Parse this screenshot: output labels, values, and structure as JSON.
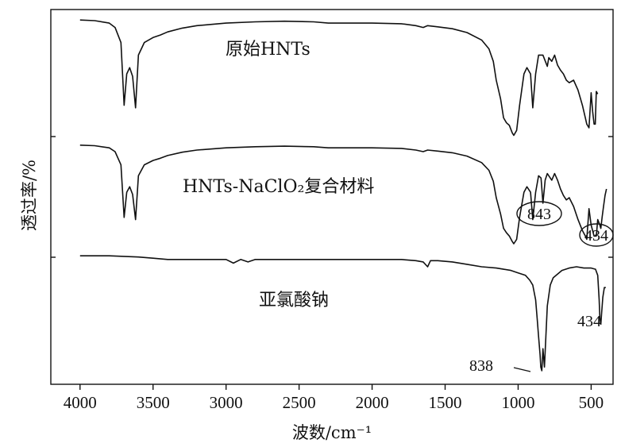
{
  "chart_data": {
    "type": "line",
    "xlabel": "波数/cm⁻¹",
    "ylabel": "透过率/%",
    "xlim": [
      4200,
      350
    ],
    "x_reversed": true,
    "x_ticks": [
      4000,
      3500,
      3000,
      2500,
      2000,
      1500,
      1000,
      500
    ],
    "y_ticks": [],
    "grid": false,
    "legend": "none",
    "series": [
      {
        "name": "原始HNTs",
        "x": [
          4000,
          3900,
          3800,
          3760,
          3720,
          3698,
          3680,
          3660,
          3640,
          3620,
          3600,
          3560,
          3500,
          3450,
          3400,
          3300,
          3200,
          3000,
          2800,
          2600,
          2400,
          2300,
          2000,
          1800,
          1700,
          1650,
          1620,
          1550,
          1450,
          1350,
          1250,
          1200,
          1170,
          1150,
          1120,
          1100,
          1080,
          1060,
          1040,
          1030,
          1010,
          990,
          960,
          940,
          915,
          900,
          880,
          860,
          830,
          800,
          790,
          770,
          750,
          730,
          710,
          690,
          670,
          650,
          620,
          590,
          560,
          540,
          530,
          515,
          500,
          490,
          480,
          472,
          465,
          455
        ],
        "values": [
          98,
          97.5,
          95.5,
          92,
          80,
          30,
          55,
          60,
          53,
          28,
          70,
          80,
          84,
          86,
          88.5,
          91.5,
          93.5,
          95.5,
          96.5,
          97,
          96.5,
          95.5,
          95.5,
          95,
          93.5,
          92,
          93.5,
          92.5,
          91,
          88,
          82,
          75,
          65,
          50,
          35,
          20,
          16,
          14,
          8,
          6,
          10,
          30,
          55,
          60,
          55,
          28,
          55,
          70,
          70,
          61,
          68,
          65,
          70,
          62,
          58,
          55,
          50,
          48,
          50,
          42,
          30,
          20,
          15,
          12,
          40,
          25,
          15,
          15,
          41,
          39
        ]
      },
      {
        "name": "HNTs-NaClO₂复合材料",
        "x": [
          4000,
          3900,
          3800,
          3760,
          3720,
          3698,
          3680,
          3660,
          3640,
          3620,
          3600,
          3560,
          3500,
          3450,
          3400,
          3300,
          3200,
          3000,
          2800,
          2600,
          2400,
          2300,
          2000,
          1800,
          1700,
          1650,
          1620,
          1550,
          1450,
          1350,
          1250,
          1200,
          1170,
          1150,
          1120,
          1100,
          1080,
          1060,
          1040,
          1030,
          1010,
          990,
          960,
          940,
          915,
          900,
          880,
          860,
          843,
          830,
          815,
          800,
          790,
          770,
          750,
          730,
          710,
          690,
          670,
          650,
          620,
          590,
          560,
          540,
          530,
          515,
          500,
          480,
          465,
          455,
          440,
          434,
          425,
          415,
          405,
          395
        ],
        "values": [
          98,
          97.5,
          95.5,
          92,
          80,
          32,
          55,
          60,
          53,
          30,
          70,
          80,
          84,
          86,
          88.5,
          91.5,
          93.5,
          95.5,
          96.5,
          97,
          96.5,
          95.5,
          95.5,
          95,
          93.5,
          92,
          93.5,
          92.5,
          91,
          88,
          82,
          75,
          65,
          50,
          35,
          22,
          18,
          15,
          10,
          8,
          12,
          32,
          55,
          60,
          55,
          30,
          55,
          70,
          68,
          45,
          66,
          72,
          70,
          66,
          72,
          66,
          58,
          52,
          48,
          50,
          42,
          30,
          20,
          15,
          12,
          40,
          25,
          15,
          15,
          30,
          25,
          22,
          32,
          42,
          52,
          58
        ]
      },
      {
        "name": "亚氯酸钠",
        "x": [
          4000,
          3800,
          3700,
          3600,
          3500,
          3400,
          3200,
          3000,
          2950,
          2900,
          2850,
          2800,
          2600,
          2400,
          2200,
          2000,
          1800,
          1700,
          1650,
          1620,
          1600,
          1550,
          1450,
          1350,
          1250,
          1150,
          1100,
          1050,
          1000,
          950,
          920,
          900,
          880,
          870,
          860,
          850,
          845,
          838,
          830,
          820,
          810,
          800,
          780,
          760,
          740,
          700,
          650,
          600,
          550,
          500,
          470,
          455,
          445,
          440,
          434,
          428,
          420,
          410,
          400
        ],
        "values": [
          96,
          96,
          95.5,
          95,
          94,
          93,
          93,
          93,
          90,
          93,
          91,
          93,
          93,
          93,
          93,
          93,
          93,
          92,
          91,
          87,
          92,
          92,
          91,
          89,
          87,
          86,
          85,
          84,
          82,
          80,
          76,
          72,
          60,
          45,
          30,
          15,
          5,
          2,
          20,
          5,
          30,
          55,
          72,
          78,
          80,
          84,
          86,
          87,
          86,
          86,
          85,
          80,
          60,
          45,
          40,
          50,
          62,
          70,
          70
        ]
      }
    ],
    "annotations": {
      "label_843": "843",
      "label_434_upper": "434",
      "label_434_lower": "434",
      "label_838": "838"
    }
  }
}
